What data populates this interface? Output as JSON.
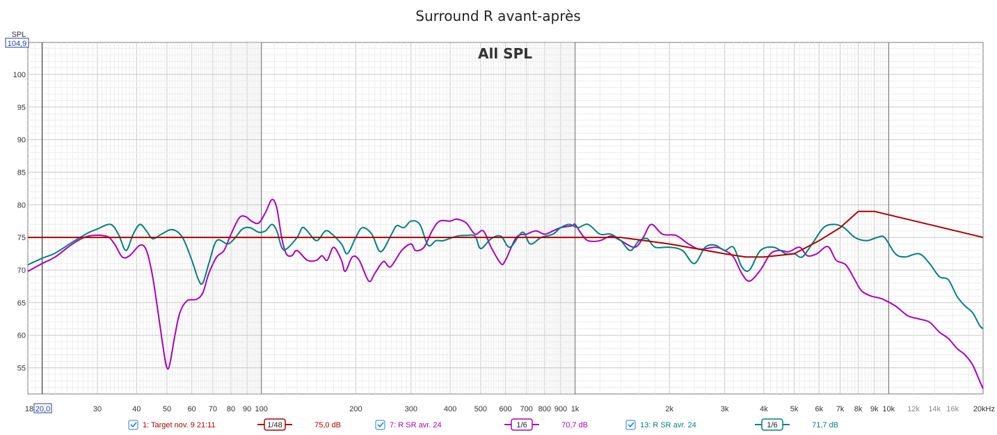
{
  "chart_data": {
    "type": "line",
    "title": "Surround R avant-après",
    "subtitle": "All SPL",
    "ylabel": "SPL",
    "ylim": [
      51,
      104.9
    ],
    "xlim": [
      18,
      20000
    ],
    "x_scale": "log",
    "y_top_label": "104,9",
    "x_start_label": "20,0",
    "x_unit": "Hz",
    "y_ticks": [
      55,
      60,
      65,
      70,
      75,
      80,
      85,
      90,
      95,
      100
    ],
    "x_ticks": [
      {
        "value": 18,
        "label": "18"
      },
      {
        "value": 30,
        "label": "30"
      },
      {
        "value": 40,
        "label": "40"
      },
      {
        "value": 50,
        "label": "50"
      },
      {
        "value": 60,
        "label": "60"
      },
      {
        "value": 70,
        "label": "70"
      },
      {
        "value": 80,
        "label": "80"
      },
      {
        "value": 90,
        "label": "90"
      },
      {
        "value": 100,
        "label": "100"
      },
      {
        "value": 200,
        "label": "200"
      },
      {
        "value": 300,
        "label": "300"
      },
      {
        "value": 400,
        "label": "400"
      },
      {
        "value": 500,
        "label": "500"
      },
      {
        "value": 600,
        "label": "600"
      },
      {
        "value": 700,
        "label": "700"
      },
      {
        "value": 800,
        "label": "800"
      },
      {
        "value": 900,
        "label": "900"
      },
      {
        "value": 1000,
        "label": "1k"
      },
      {
        "value": 2000,
        "label": "2k"
      },
      {
        "value": 3000,
        "label": "3k"
      },
      {
        "value": 4000,
        "label": "4k"
      },
      {
        "value": 5000,
        "label": "5k"
      },
      {
        "value": 6000,
        "label": "6k"
      },
      {
        "value": 7000,
        "label": "7k"
      },
      {
        "value": 8000,
        "label": "8k"
      },
      {
        "value": 9000,
        "label": "9k"
      },
      {
        "value": 10000,
        "label": "10k"
      },
      {
        "value": 12000,
        "label": "12k",
        "minor": true
      },
      {
        "value": 14000,
        "label": "14k",
        "minor": true
      },
      {
        "value": 16000,
        "label": "16k",
        "minor": true
      },
      {
        "value": 20000,
        "label": "20kHz"
      }
    ],
    "grid": true,
    "series": [
      {
        "name": "1: Target nov. 9 21:11",
        "color": "#b00000",
        "smoothing": "1/48",
        "level": "75,0 dB",
        "points": [
          [
            18,
            75
          ],
          [
            20,
            75
          ],
          [
            100,
            75
          ],
          [
            1000,
            75
          ],
          [
            1400,
            75
          ],
          [
            2000,
            74
          ],
          [
            3000,
            72.5
          ],
          [
            3500,
            72
          ],
          [
            4000,
            72
          ],
          [
            5000,
            72.5
          ],
          [
            6000,
            74.5
          ],
          [
            7000,
            76.5
          ],
          [
            8000,
            79
          ],
          [
            9000,
            79
          ],
          [
            20000,
            75
          ]
        ]
      },
      {
        "name": "7: R SR avr. 24",
        "color": "#aa00bb",
        "smoothing": "1/6",
        "level": "70,7 dB",
        "points": [
          [
            18,
            69.8
          ],
          [
            20,
            71
          ],
          [
            22,
            72
          ],
          [
            25,
            74
          ],
          [
            28,
            75.2
          ],
          [
            32,
            75.2
          ],
          [
            34,
            74
          ],
          [
            36,
            72
          ],
          [
            38,
            72.2
          ],
          [
            41,
            73.8
          ],
          [
            43,
            73
          ],
          [
            45,
            69
          ],
          [
            47,
            63
          ],
          [
            49,
            57
          ],
          [
            50,
            55
          ],
          [
            51,
            55.5
          ],
          [
            53,
            60
          ],
          [
            55,
            63.5
          ],
          [
            58,
            65.3
          ],
          [
            62,
            65.5
          ],
          [
            65,
            66.5
          ],
          [
            68,
            69.5
          ],
          [
            72,
            72
          ],
          [
            76,
            73
          ],
          [
            80,
            75.5
          ],
          [
            85,
            78
          ],
          [
            89,
            78.2
          ],
          [
            93,
            77.5
          ],
          [
            98,
            77.2
          ],
          [
            103,
            78.8
          ],
          [
            108,
            80.8
          ],
          [
            112,
            79.5
          ],
          [
            116,
            75
          ],
          [
            120,
            72.5
          ],
          [
            125,
            72.2
          ],
          [
            130,
            73
          ],
          [
            140,
            71.5
          ],
          [
            150,
            71.5
          ],
          [
            156,
            72.2
          ],
          [
            162,
            71.5
          ],
          [
            170,
            73.5
          ],
          [
            180,
            71.5
          ],
          [
            185,
            69.8
          ],
          [
            195,
            72
          ],
          [
            205,
            71.5
          ],
          [
            220,
            68.3
          ],
          [
            230,
            69.5
          ],
          [
            245,
            71.3
          ],
          [
            258,
            70.5
          ],
          [
            280,
            73
          ],
          [
            300,
            74
          ],
          [
            310,
            73
          ],
          [
            330,
            73.5
          ],
          [
            350,
            76
          ],
          [
            370,
            77.5
          ],
          [
            400,
            77.5
          ],
          [
            420,
            77.8
          ],
          [
            450,
            77.2
          ],
          [
            480,
            75.5
          ],
          [
            510,
            76
          ],
          [
            540,
            73.5
          ],
          [
            580,
            71
          ],
          [
            600,
            71.5
          ],
          [
            650,
            75
          ],
          [
            700,
            75.5
          ],
          [
            750,
            76
          ],
          [
            800,
            75.5
          ],
          [
            850,
            76
          ],
          [
            900,
            76.5
          ],
          [
            980,
            76.8
          ],
          [
            1000,
            77
          ],
          [
            1050,
            75.5
          ],
          [
            1100,
            74.5
          ],
          [
            1200,
            74.5
          ],
          [
            1300,
            75.2
          ],
          [
            1400,
            74.5
          ],
          [
            1550,
            73.5
          ],
          [
            1650,
            75
          ],
          [
            1750,
            77
          ],
          [
            1900,
            75.5
          ],
          [
            2100,
            75.3
          ],
          [
            2300,
            74
          ],
          [
            2500,
            73.2
          ],
          [
            2800,
            73.5
          ],
          [
            3000,
            73
          ],
          [
            3200,
            72
          ],
          [
            3400,
            69.5
          ],
          [
            3600,
            68.3
          ],
          [
            3900,
            70
          ],
          [
            4200,
            72.5
          ],
          [
            4500,
            73
          ],
          [
            4800,
            72.8
          ],
          [
            5200,
            73.5
          ],
          [
            5500,
            72.2
          ],
          [
            5900,
            72.5
          ],
          [
            6400,
            73.6
          ],
          [
            6800,
            71.5
          ],
          [
            7300,
            70.8
          ],
          [
            7800,
            68.5
          ],
          [
            8200,
            66.8
          ],
          [
            8800,
            66
          ],
          [
            9500,
            65.6
          ],
          [
            10500,
            64.5
          ],
          [
            11500,
            63
          ],
          [
            12500,
            62.5
          ],
          [
            13500,
            62
          ],
          [
            14500,
            60.5
          ],
          [
            15500,
            59.5
          ],
          [
            16500,
            58
          ],
          [
            17500,
            57
          ],
          [
            18500,
            55.5
          ],
          [
            19500,
            53
          ],
          [
            20000,
            51.8
          ]
        ]
      },
      {
        "name": "13: R SR avr. 24",
        "color": "#008080",
        "smoothing": "1/6",
        "level": "71,7 dB",
        "points": [
          [
            18,
            70.8
          ],
          [
            20,
            71.8
          ],
          [
            22,
            72.6
          ],
          [
            25,
            74.3
          ],
          [
            28,
            75.7
          ],
          [
            30,
            76.3
          ],
          [
            33,
            77
          ],
          [
            35,
            75.5
          ],
          [
            37,
            73
          ],
          [
            39,
            75.5
          ],
          [
            41,
            77
          ],
          [
            43,
            76
          ],
          [
            45,
            74.8
          ],
          [
            48,
            75.5
          ],
          [
            52,
            76.2
          ],
          [
            56,
            75
          ],
          [
            60,
            71.5
          ],
          [
            63,
            68.5
          ],
          [
            65,
            68
          ],
          [
            68,
            71
          ],
          [
            72,
            74.5
          ],
          [
            78,
            74
          ],
          [
            82,
            74.8
          ],
          [
            87,
            76.3
          ],
          [
            92,
            76.5
          ],
          [
            98,
            75.8
          ],
          [
            103,
            76
          ],
          [
            108,
            77
          ],
          [
            112,
            76
          ],
          [
            116,
            73.5
          ],
          [
            120,
            73.2
          ],
          [
            130,
            75
          ],
          [
            135,
            76.5
          ],
          [
            140,
            76
          ],
          [
            150,
            74.5
          ],
          [
            160,
            76
          ],
          [
            168,
            75.5
          ],
          [
            180,
            74
          ],
          [
            188,
            72.5
          ],
          [
            200,
            75
          ],
          [
            210,
            76.5
          ],
          [
            225,
            75.5
          ],
          [
            240,
            72.8
          ],
          [
            260,
            75.5
          ],
          [
            270,
            76.8
          ],
          [
            285,
            76.5
          ],
          [
            300,
            77.5
          ],
          [
            320,
            77
          ],
          [
            340,
            73.8
          ],
          [
            360,
            74.5
          ],
          [
            380,
            74.5
          ],
          [
            420,
            75.2
          ],
          [
            450,
            75.3
          ],
          [
            480,
            75.2
          ],
          [
            500,
            73.3
          ],
          [
            540,
            74.8
          ],
          [
            580,
            75.2
          ],
          [
            620,
            73.5
          ],
          [
            680,
            75.8
          ],
          [
            720,
            74
          ],
          [
            780,
            75
          ],
          [
            850,
            75.5
          ],
          [
            900,
            76.5
          ],
          [
            960,
            77
          ],
          [
            1020,
            76.5
          ],
          [
            1100,
            77
          ],
          [
            1200,
            75.5
          ],
          [
            1300,
            75.5
          ],
          [
            1400,
            74.5
          ],
          [
            1500,
            73
          ],
          [
            1600,
            74.5
          ],
          [
            1700,
            74.8
          ],
          [
            1800,
            73.5
          ],
          [
            2000,
            73.5
          ],
          [
            2200,
            73
          ],
          [
            2400,
            71
          ],
          [
            2600,
            73.5
          ],
          [
            2800,
            73.8
          ],
          [
            3000,
            73
          ],
          [
            3200,
            73.5
          ],
          [
            3400,
            70.5
          ],
          [
            3600,
            70
          ],
          [
            3900,
            73
          ],
          [
            4300,
            73.5
          ],
          [
            4700,
            72.5
          ],
          [
            5000,
            72.5
          ],
          [
            5300,
            72
          ],
          [
            5700,
            74
          ],
          [
            6200,
            76.5
          ],
          [
            6700,
            77
          ],
          [
            7200,
            76.5
          ],
          [
            7800,
            75
          ],
          [
            8500,
            74.5
          ],
          [
            9200,
            75
          ],
          [
            9700,
            75
          ],
          [
            10500,
            72.5
          ],
          [
            11300,
            72
          ],
          [
            12500,
            72.5
          ],
          [
            13500,
            71
          ],
          [
            14500,
            69
          ],
          [
            15500,
            68.5
          ],
          [
            16500,
            66
          ],
          [
            17500,
            64.5
          ],
          [
            18500,
            63.5
          ],
          [
            19500,
            61.5
          ],
          [
            20000,
            61
          ]
        ]
      }
    ],
    "legend_placement": "bottom"
  }
}
